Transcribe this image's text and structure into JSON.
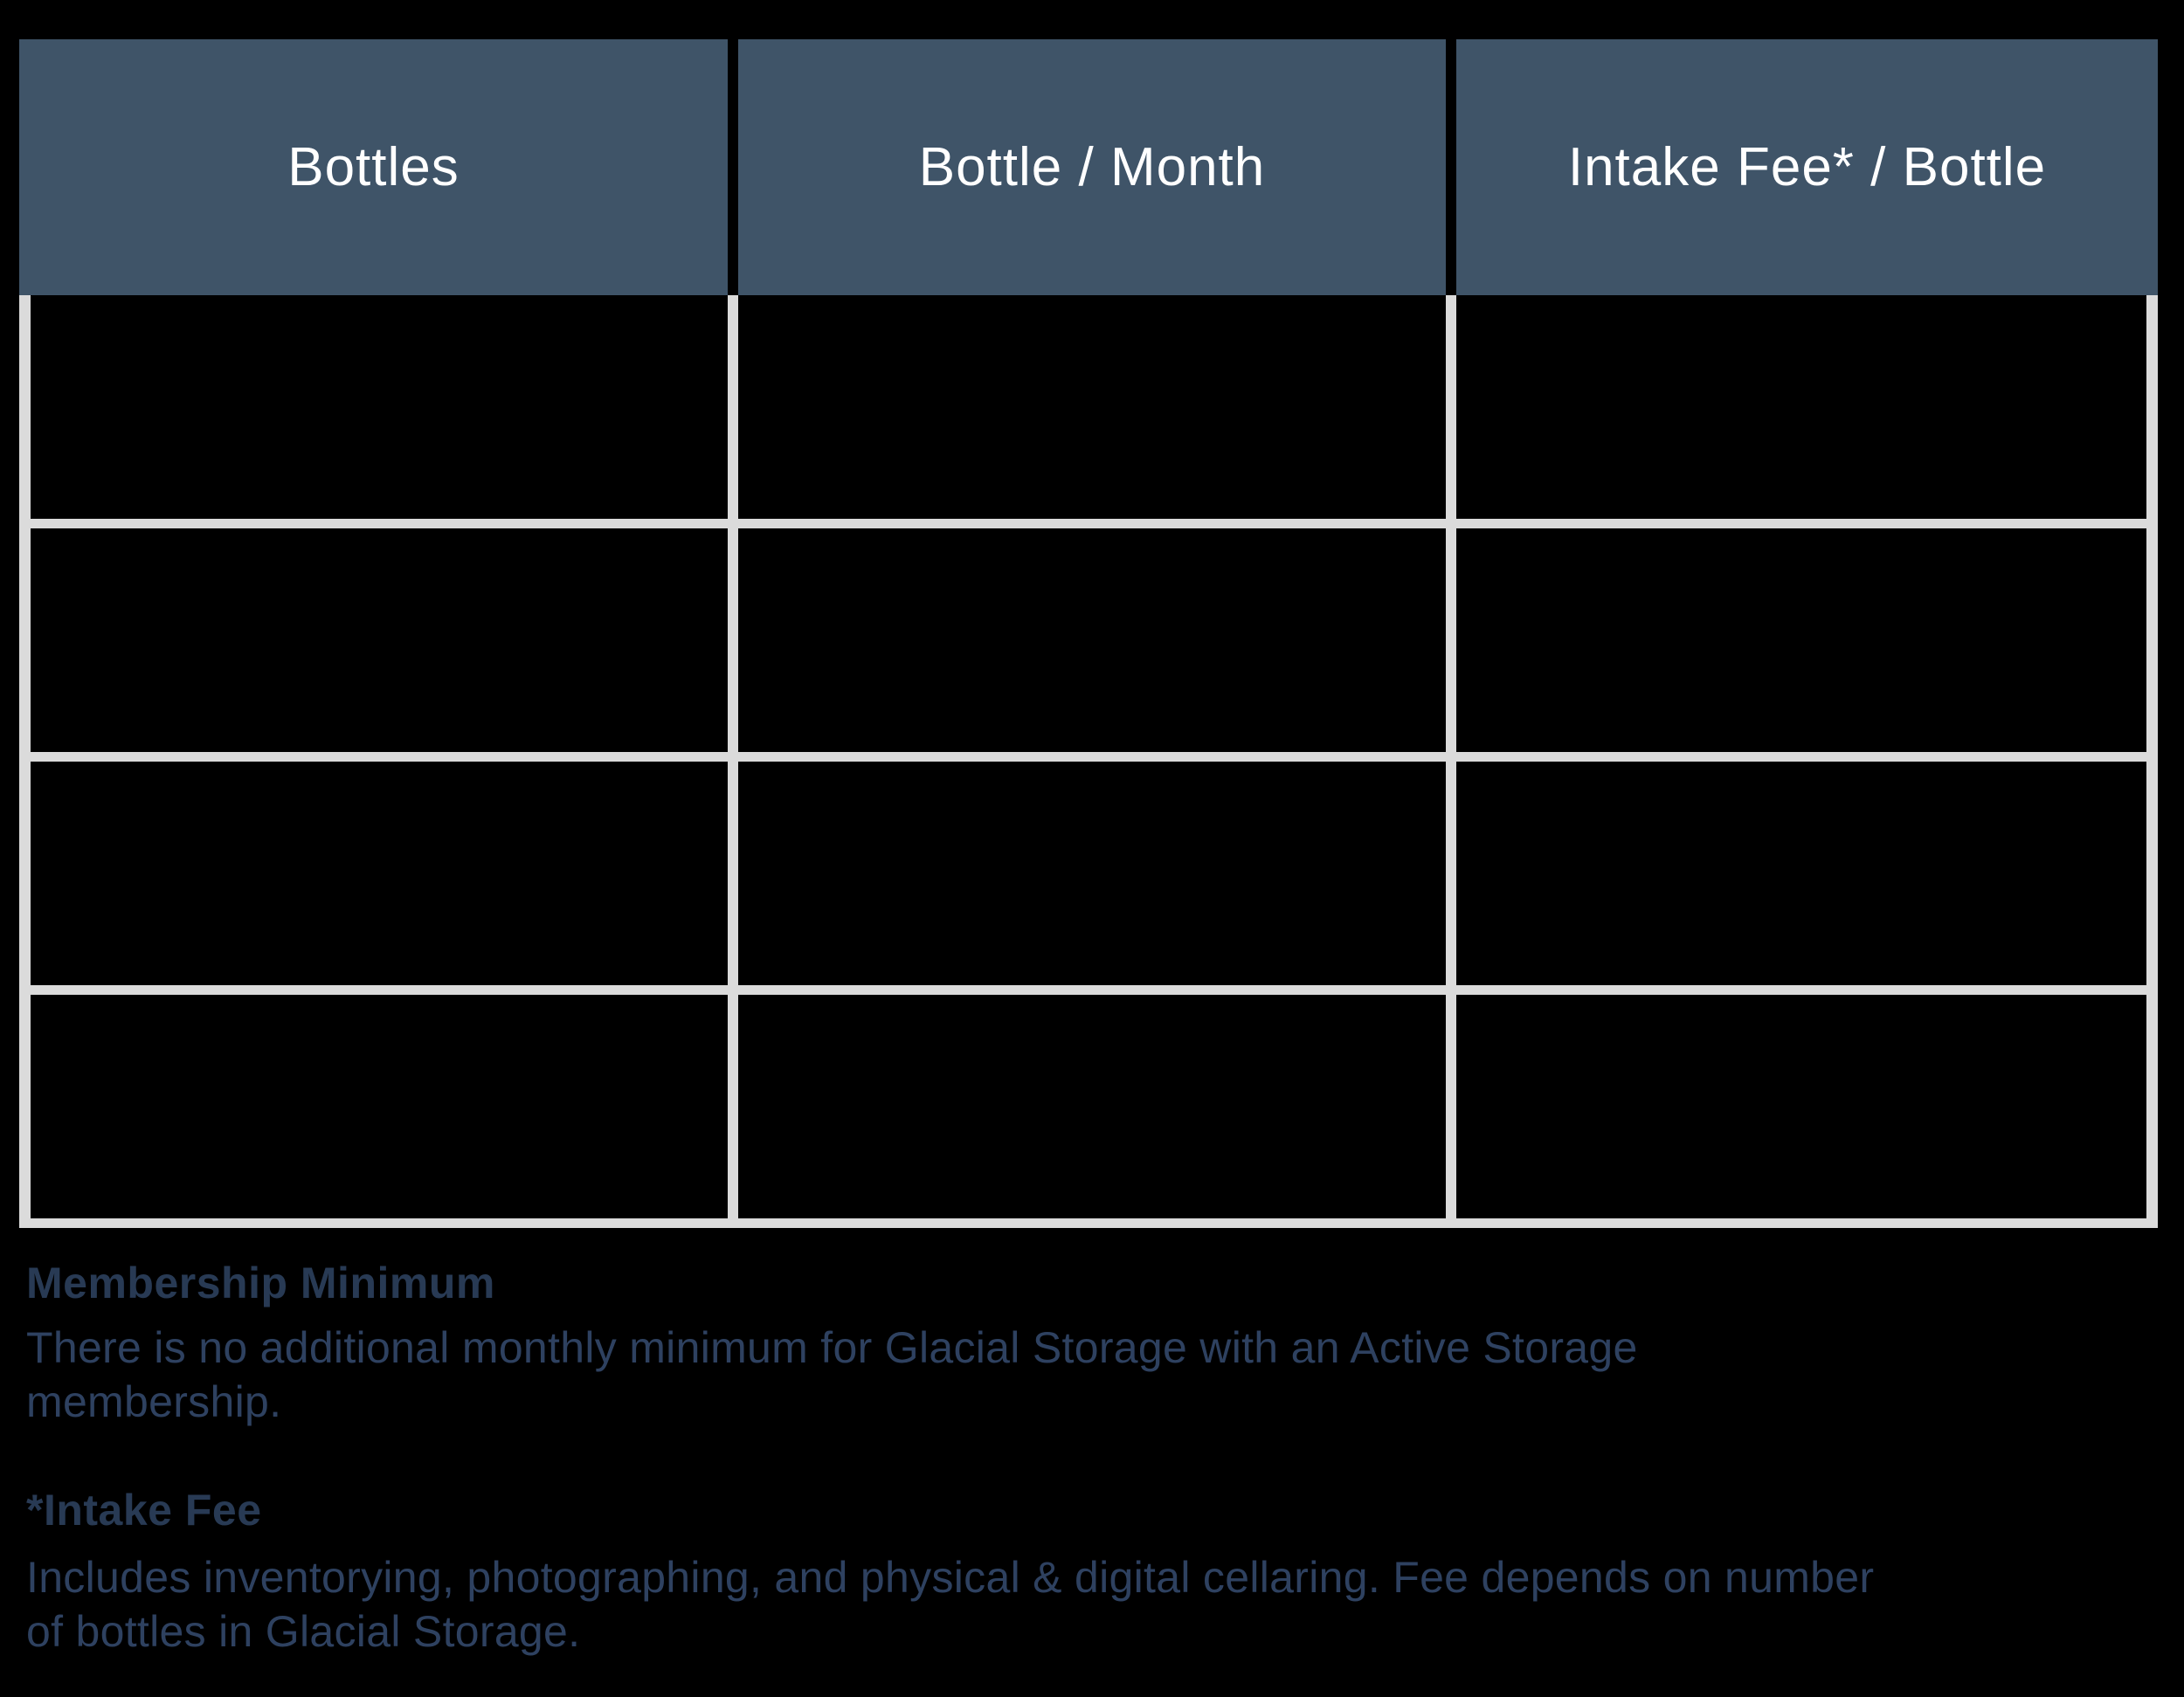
{
  "colors": {
    "page_bg": "#000000",
    "header_bg": "#3F5468",
    "header_text": "#FFFFFF",
    "grid_border": "#DBDBDB",
    "cell_bg": "#000000",
    "note_heading_text": "#283A54",
    "note_body_text": "#2E4160"
  },
  "table": {
    "columns": [
      "Bottles",
      "Bottle / Month",
      "Intake Fee* / Bottle"
    ],
    "rows": [
      [
        "",
        "",
        ""
      ],
      [
        "",
        "",
        ""
      ],
      [
        "",
        "",
        ""
      ],
      [
        "",
        "",
        ""
      ]
    ]
  },
  "notes": [
    {
      "heading": "Membership Minimum",
      "lines": [
        "There is no additional monthly minimum for Glacial Storage with an Active Storage",
        "membership."
      ]
    },
    {
      "heading": "*Intake Fee",
      "lines": [
        "Includes inventorying, photographing, and physical & digital cellaring. Fee depends on number",
        "of bottles in Glacial Storage."
      ]
    }
  ]
}
